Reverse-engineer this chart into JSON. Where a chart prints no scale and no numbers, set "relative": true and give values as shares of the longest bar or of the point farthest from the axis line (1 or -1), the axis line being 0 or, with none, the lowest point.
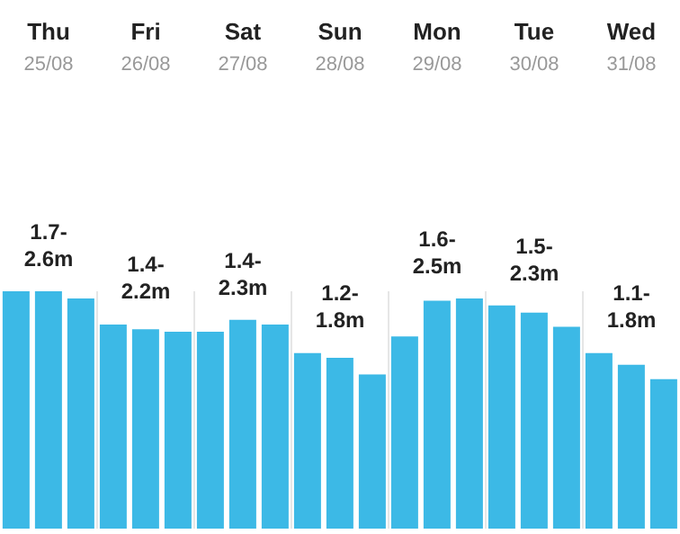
{
  "chart_data": {
    "type": "bar",
    "relative": true,
    "color": "#3cb9e6",
    "grid": "x",
    "categories": [
      null,
      "Thu 25/08",
      null,
      null,
      "Fri 26/08",
      null,
      null,
      "Sat 27/08",
      null,
      null,
      "Sun 28/08",
      null,
      null,
      "Mon 29/08",
      null,
      null,
      "Tue 30/08",
      null,
      null,
      "Wed 31/08",
      null
    ],
    "values": [
      1,
      1,
      0.97,
      0.86,
      0.84,
      0.83,
      0.83,
      0.88,
      0.86,
      0.74,
      0.72,
      0.65,
      0.81,
      0.96,
      0.97,
      0.94,
      0.91,
      0.85,
      0.74,
      0.69,
      0.63
    ],
    "annotations": [
      "1.7-2.6m",
      "1.4-2.2m",
      "1.4-2.3m",
      "1.2-1.8m",
      "1.6-2.5m",
      "1.5-2.3m",
      "1.1-1.8m"
    ]
  }
}
